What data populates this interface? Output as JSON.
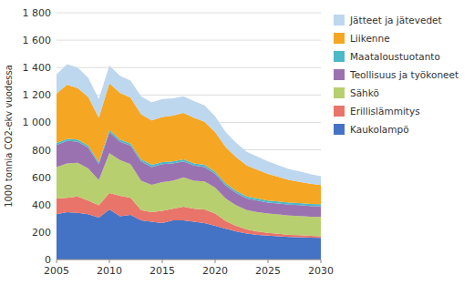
{
  "chart_data": {
    "type": "area",
    "stacked": true,
    "y_label": "1000 tonnia CO2-ekv vuodessa",
    "x": [
      2005,
      2006,
      2007,
      2008,
      2009,
      2010,
      2011,
      2012,
      2013,
      2014,
      2015,
      2016,
      2017,
      2018,
      2019,
      2020,
      2021,
      2022,
      2023,
      2024,
      2025,
      2026,
      2027,
      2028,
      2029,
      2030
    ],
    "series": [
      {
        "name": "Kaukolampö",
        "color": "#4472C4",
        "values": [
          330,
          345,
          340,
          330,
          305,
          365,
          315,
          325,
          285,
          275,
          265,
          285,
          285,
          275,
          265,
          245,
          225,
          205,
          190,
          180,
          175,
          170,
          165,
          162,
          160,
          158
        ]
      },
      {
        "name": "Erillislämmitys",
        "color": "#E8746A",
        "values": [
          115,
          105,
          120,
          100,
          90,
          120,
          150,
          125,
          75,
          70,
          90,
          85,
          100,
          95,
          100,
          90,
          55,
          40,
          30,
          25,
          20,
          18,
          15,
          15,
          12,
          12
        ]
      },
      {
        "name": "Sähkö",
        "color": "#B8CF6F",
        "values": [
          230,
          250,
          245,
          235,
          185,
          290,
          260,
          245,
          215,
          200,
          210,
          205,
          215,
          205,
          205,
          190,
          165,
          150,
          140,
          140,
          140,
          140,
          140,
          140,
          140,
          140
        ]
      },
      {
        "name": "Teollisuus ja työkoneet",
        "color": "#9B72B0",
        "values": [
          160,
          165,
          155,
          150,
          115,
          155,
          135,
          135,
          140,
          130,
          130,
          125,
          115,
          110,
          105,
          100,
          95,
          90,
          85,
          85,
          80,
          80,
          80,
          80,
          78,
          78
        ]
      },
      {
        "name": "Maataloustuotanto",
        "color": "#4DB8C8",
        "values": [
          15,
          15,
          15,
          15,
          15,
          15,
          15,
          15,
          15,
          15,
          15,
          15,
          15,
          15,
          15,
          15,
          15,
          15,
          15,
          15,
          15,
          15,
          15,
          15,
          15,
          15
        ]
      },
      {
        "name": "Liikenne",
        "color": "#F5A623",
        "values": [
          360,
          395,
          375,
          355,
          325,
          340,
          340,
          335,
          330,
          325,
          330,
          335,
          340,
          335,
          315,
          290,
          265,
          245,
          225,
          210,
          195,
          180,
          165,
          155,
          148,
          140
        ]
      },
      {
        "name": "Jätteet ja jätevedet",
        "color": "#BDD7EE",
        "values": [
          140,
          150,
          150,
          140,
          135,
          130,
          125,
          125,
          130,
          130,
          130,
          125,
          120,
          120,
          120,
          115,
          110,
          105,
          100,
          95,
          90,
          85,
          80,
          75,
          70,
          65
        ]
      }
    ],
    "xlim": [
      2005,
      2030
    ],
    "xticks": [
      2005,
      2010,
      2015,
      2020,
      2025,
      2030
    ],
    "ylim": [
      0,
      1800
    ],
    "yticks": [
      0,
      200,
      400,
      600,
      800,
      {
        "value": 1000,
        "label": "1 000"
      },
      {
        "value": 1200,
        "label": "1 200"
      },
      {
        "value": 1400,
        "label": "1 400"
      },
      {
        "value": 1600,
        "label": "1 600"
      },
      {
        "value": 1800,
        "label": "1 800"
      }
    ],
    "grid": true,
    "legend": "right"
  }
}
